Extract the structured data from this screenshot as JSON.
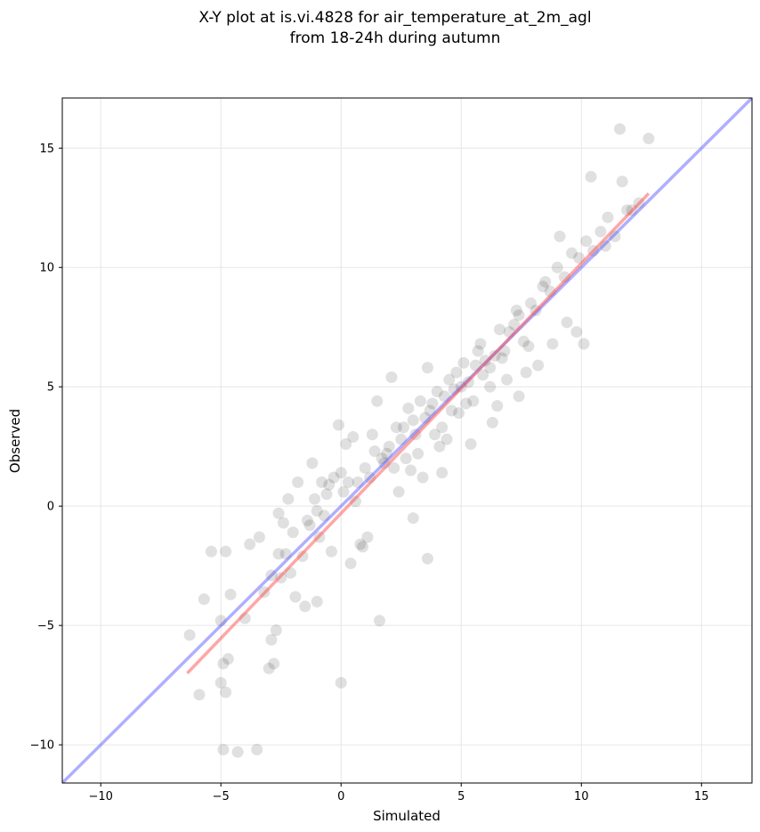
{
  "chart_data": {
    "type": "scatter",
    "title_line1": "X-Y plot at is.vi.4828 for air_temperature_at_2m_agl",
    "title_line2": "from 18-24h during autumn",
    "xlabel": "Simulated",
    "ylabel": "Observed",
    "xlim": [
      -11.6,
      17.1
    ],
    "ylim": [
      -11.6,
      17.1
    ],
    "xticks": [
      -10,
      -5,
      0,
      5,
      10,
      15
    ],
    "yticks": [
      -10,
      -5,
      0,
      5,
      10,
      15
    ],
    "xtick_labels": [
      "−10",
      "−5",
      "0",
      "5",
      "10",
      "15"
    ],
    "ytick_labels": [
      "−10",
      "−5",
      "0",
      "5",
      "10",
      "15"
    ],
    "grid": true,
    "colors": {
      "points": "#000000",
      "regression_line": "#ff4d4d",
      "identity_line": "#4d4dff",
      "grid": "#e6e6e6"
    },
    "regression_line": {
      "x": [
        -6.4,
        12.8
      ],
      "y": [
        -7.0,
        13.1
      ]
    },
    "identity_line": {
      "x": [
        -11.6,
        17.1
      ],
      "y": [
        -11.6,
        17.1
      ]
    },
    "points": {
      "x": [
        -6.3,
        -5.9,
        -5.7,
        -5.4,
        -5.0,
        -4.9,
        -4.6,
        -4.3,
        -4.0,
        -4.9,
        -4.8,
        -3.5,
        -3.0,
        -2.9,
        -2.8,
        -2.5,
        -2.4,
        -2.2,
        -2.1,
        -2.0,
        -1.8,
        -1.6,
        -1.4,
        -1.2,
        -1.1,
        -0.9,
        -0.8,
        -0.6,
        -0.5,
        -0.3,
        -0.1,
        0.1,
        0.3,
        0.4,
        0.5,
        0.7,
        0.9,
        1.0,
        1.2,
        1.4,
        1.5,
        1.7,
        1.8,
        2.0,
        2.1,
        2.3,
        2.5,
        2.6,
        2.8,
        3.0,
        3.1,
        3.3,
        3.5,
        3.6,
        3.8,
        4.0,
        4.1,
        4.3,
        4.5,
        4.6,
        4.8,
        5.0,
        5.1,
        5.3,
        5.5,
        5.6,
        5.8,
        6.0,
        6.2,
        6.4,
        6.6,
        6.8,
        7.0,
        7.2,
        7.4,
        7.6,
        7.9,
        8.1,
        8.4,
        8.7,
        9.0,
        9.3,
        9.6,
        9.9,
        10.2,
        10.5,
        10.8,
        11.1,
        11.4,
        11.7,
        11.9,
        12.1,
        12.4,
        12.8,
        -5.0,
        -4.7,
        -3.2,
        -2.9,
        -2.7,
        -2.3,
        -1.5,
        -1.0,
        0.0,
        0.8,
        1.6,
        3.0,
        3.6,
        4.2,
        6.3,
        7.4,
        8.2,
        9.8,
        10.1,
        -4.8,
        -3.8,
        -2.6,
        -1.9,
        -1.3,
        -0.4,
        0.2,
        1.1,
        2.4,
        3.4,
        4.4,
        5.4,
        6.5,
        7.7,
        8.8,
        9.4,
        11.0,
        11.6,
        -1.0,
        0.6,
        1.9,
        2.9,
        3.9,
        4.9,
        5.9,
        6.9,
        7.8,
        2.2,
        3.2,
        4.2,
        5.2,
        6.2,
        4.7,
        5.7,
        3.7,
        6.7,
        1.3,
        0.0,
        -0.7,
        -2.6,
        -3.4,
        2.7,
        7.3,
        8.5,
        9.1,
        10.4
      ],
      "y": [
        -5.4,
        -7.9,
        -3.9,
        -1.9,
        -7.4,
        -10.2,
        -3.7,
        -10.3,
        -4.7,
        -6.6,
        -7.8,
        -10.2,
        -6.8,
        -2.9,
        -6.6,
        -3.0,
        -0.7,
        0.3,
        -2.8,
        -1.1,
        1.0,
        -2.1,
        -0.6,
        1.8,
        0.3,
        -1.3,
        1.0,
        0.5,
        0.9,
        1.2,
        3.4,
        0.6,
        1.0,
        -2.4,
        2.9,
        1.0,
        -1.7,
        1.6,
        1.2,
        2.3,
        4.4,
        2.0,
        1.8,
        2.5,
        5.4,
        3.3,
        2.8,
        3.3,
        4.1,
        3.6,
        3.0,
        4.4,
        3.7,
        5.8,
        4.3,
        4.8,
        2.5,
        4.6,
        5.3,
        4.0,
        5.6,
        5.0,
        6.0,
        5.2,
        4.4,
        5.9,
        6.8,
        6.1,
        5.8,
        6.3,
        7.4,
        6.5,
        7.3,
        7.6,
        8.0,
        6.9,
        8.5,
        8.2,
        9.2,
        9.0,
        10.0,
        9.6,
        10.6,
        10.4,
        11.1,
        10.7,
        11.5,
        12.1,
        11.3,
        13.6,
        12.4,
        12.4,
        12.7,
        15.4,
        -4.8,
        -6.4,
        -3.6,
        -5.6,
        -5.2,
        -2.0,
        -4.2,
        -4.0,
        -7.4,
        -1.6,
        -4.8,
        -0.5,
        -2.2,
        1.4,
        3.5,
        4.6,
        5.9,
        7.3,
        6.8,
        -1.9,
        -1.6,
        -0.3,
        -3.8,
        -0.8,
        -1.9,
        2.6,
        -1.3,
        0.6,
        1.2,
        2.8,
        2.6,
        4.2,
        5.6,
        6.8,
        7.7,
        10.9,
        15.8,
        -0.2,
        0.2,
        2.2,
        1.5,
        3.0,
        3.9,
        5.5,
        5.3,
        6.7,
        1.6,
        2.2,
        3.3,
        4.3,
        5.0,
        4.9,
        6.5,
        4.0,
        6.2,
        3.0,
        1.4,
        -0.4,
        -2.0,
        -1.3,
        2.0,
        8.2,
        9.4,
        11.3,
        13.8
      ]
    }
  }
}
